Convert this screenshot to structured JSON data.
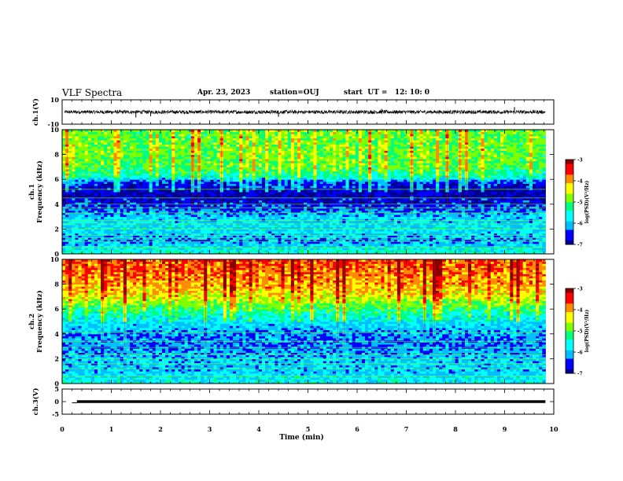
{
  "header": {
    "title": "VLF Spectra",
    "date": "Apr. 23, 2023",
    "station": "station=OUJ",
    "start_ut": "start  UT =   12: 10: 0"
  },
  "colors": {
    "colormap": [
      "#00008b",
      "#0000ff",
      "#00bfff",
      "#00ffff",
      "#00ff7f",
      "#7fff00",
      "#ffff00",
      "#ff8c00",
      "#ff0000",
      "#8b0000"
    ],
    "trace": "#000000",
    "frame": "#000000"
  },
  "chart_data": [
    {
      "type": "line",
      "name": "ch1-waveform",
      "ylabel": "ch.1(V)",
      "ylim": [
        -10,
        10
      ],
      "yticks": [
        "10",
        "-10"
      ],
      "xlim": [
        0,
        10
      ],
      "baseline": 0,
      "noise_amplitude": 1.5,
      "spikes": [
        {
          "x": 1.5,
          "y": -4.5
        },
        {
          "x": 1.8,
          "y": -3.5
        },
        {
          "x": 4.4,
          "y": -4
        },
        {
          "x": 6.5,
          "y": 2.5
        },
        {
          "x": 9.2,
          "y": 4
        }
      ]
    },
    {
      "type": "heatmap",
      "name": "ch1-spectrogram",
      "ylabel": "ch.1\nFrequency (kHz)",
      "xlim": [
        0,
        10
      ],
      "xticks": [
        0,
        1,
        2,
        3,
        4,
        5,
        6,
        7,
        8,
        9,
        10
      ],
      "ylim": [
        0,
        10
      ],
      "yticks": [
        "0",
        "2",
        "4",
        "6",
        "8",
        "10"
      ],
      "data_xmax": 9.83,
      "colorbar": {
        "label": "log(PSD)(V²/Hz)",
        "range": [
          -7,
          -3
        ],
        "ticks": [
          "-3",
          "-4",
          "-5",
          "-6",
          "-7"
        ]
      },
      "profile": [
        {
          "f": 0.0,
          "level": -5.4
        },
        {
          "f": 1.0,
          "level": -6.2
        },
        {
          "f": 2.0,
          "level": -5.8
        },
        {
          "f": 3.0,
          "level": -6.0
        },
        {
          "f": 4.0,
          "level": -6.6
        },
        {
          "f": 5.0,
          "level": -6.9
        },
        {
          "f": 5.8,
          "level": -6.5
        },
        {
          "f": 6.2,
          "level": -5.5
        },
        {
          "f": 7.0,
          "level": -5.0
        },
        {
          "f": 8.0,
          "level": -4.9
        },
        {
          "f": 9.0,
          "level": -4.9
        },
        {
          "f": 10.0,
          "level": -4.9
        }
      ],
      "lines_khz": [
        0.5,
        1.0,
        1.3,
        1.5,
        2.0,
        2.4,
        2.7,
        3.3,
        3.7,
        4.0,
        4.5,
        5.2
      ]
    },
    {
      "type": "heatmap",
      "name": "ch2-spectrogram",
      "ylabel": "ch.2\nFrequency (kHz)",
      "xlim": [
        0,
        10
      ],
      "xticks": [
        0,
        1,
        2,
        3,
        4,
        5,
        6,
        7,
        8,
        9,
        10
      ],
      "ylim": [
        0,
        10
      ],
      "yticks": [
        "0",
        "2",
        "4",
        "6",
        "8",
        "10"
      ],
      "data_xmax": 9.83,
      "colorbar": {
        "label": "log(PSD)(V²/Hz)",
        "range": [
          -7,
          -3
        ],
        "ticks": [
          "-3",
          "-4",
          "-5",
          "-6",
          "-7"
        ]
      },
      "profile": [
        {
          "f": 0.0,
          "level": -5.6
        },
        {
          "f": 1.0,
          "level": -6.0
        },
        {
          "f": 2.0,
          "level": -6.0
        },
        {
          "f": 3.0,
          "level": -6.3
        },
        {
          "f": 4.0,
          "level": -6.2
        },
        {
          "f": 5.0,
          "level": -5.8
        },
        {
          "f": 6.0,
          "level": -5.2
        },
        {
          "f": 7.0,
          "level": -4.4
        },
        {
          "f": 8.0,
          "level": -4.0
        },
        {
          "f": 9.0,
          "level": -3.8
        },
        {
          "f": 10.0,
          "level": -3.7
        }
      ],
      "lines_khz": [
        0.6,
        1.2,
        1.6,
        2.0,
        2.3,
        2.9,
        3.4,
        4.1,
        6.4
      ]
    },
    {
      "type": "line",
      "name": "ch3-waveform",
      "ylabel": "ch.3(V)",
      "ylim": [
        -5,
        5
      ],
      "yticks": [
        "5",
        "0",
        "-5"
      ],
      "xlim": [
        0,
        10
      ],
      "xticks": [
        "0",
        "1",
        "2",
        "3",
        "4",
        "5",
        "6",
        "7",
        "8",
        "9",
        "10"
      ],
      "xlabel": "Time (min)",
      "segments": [
        {
          "x": [
            0.3,
            9.83
          ],
          "y": 0
        }
      ],
      "initial": {
        "x": [
          0.2,
          0.3
        ],
        "y": 0
      }
    }
  ]
}
